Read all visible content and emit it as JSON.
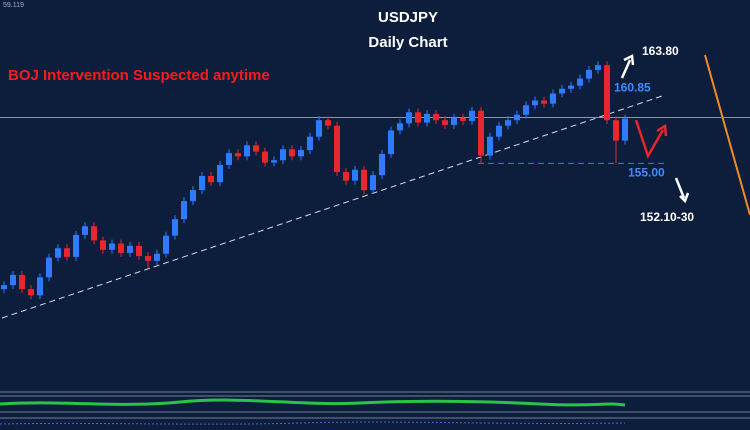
{
  "chart_data": {
    "type": "candlestick",
    "title": "USDJPY",
    "subtitle": "Daily Chart",
    "annotation": "BOJ Intervention Suspected anytime",
    "corner_label": "59.119",
    "open": [
      139.0,
      139.5,
      140.8,
      139.0,
      138.2,
      140.5,
      143.0,
      144.2,
      143.1,
      145.9,
      147.0,
      145.2,
      144.0,
      144.8,
      143.6,
      144.5,
      143.2,
      142.6,
      143.5,
      145.8,
      147.9,
      150.2,
      151.6,
      153.4,
      152.6,
      154.8,
      156.3,
      155.9,
      157.3,
      156.5,
      155.1,
      155.4,
      156.8,
      155.9,
      156.7,
      158.4,
      160.5,
      159.8,
      153.9,
      152.8,
      154.2,
      151.6,
      153.5,
      156.2,
      159.2,
      160.1,
      161.5,
      160.2,
      161.3,
      160.5,
      159.9,
      160.8,
      160.4,
      161.7,
      156.0,
      158.4,
      159.8,
      160.5,
      161.2,
      162.4,
      163.0,
      162.6,
      163.9,
      164.5,
      164.9,
      165.8,
      166.9,
      167.5,
      160.5,
      157.9
    ],
    "high": [
      140.0,
      141.3,
      141.3,
      139.5,
      141.0,
      143.5,
      144.7,
      144.7,
      146.4,
      147.5,
      147.5,
      145.7,
      145.3,
      145.3,
      145.0,
      145.0,
      143.7,
      144.0,
      146.3,
      148.4,
      150.7,
      152.1,
      153.9,
      153.9,
      155.3,
      156.8,
      156.8,
      157.8,
      157.8,
      157.0,
      155.9,
      157.3,
      157.3,
      157.2,
      158.9,
      161.0,
      161.0,
      160.3,
      154.4,
      154.7,
      154.7,
      154.0,
      156.7,
      159.7,
      160.6,
      162.0,
      162.0,
      161.8,
      161.8,
      161.0,
      161.3,
      161.3,
      162.2,
      162.2,
      158.9,
      160.3,
      161.0,
      161.7,
      162.9,
      163.5,
      163.5,
      164.4,
      165.0,
      165.4,
      166.3,
      167.4,
      168.0,
      168.0,
      161.0,
      161.2
    ],
    "low": [
      138.5,
      139.0,
      138.5,
      137.7,
      137.7,
      140.0,
      142.5,
      142.6,
      142.6,
      145.4,
      144.7,
      143.5,
      143.5,
      143.1,
      143.1,
      142.7,
      141.6,
      142.1,
      143.0,
      145.3,
      147.4,
      149.7,
      151.1,
      152.1,
      152.1,
      154.3,
      155.4,
      155.4,
      156.0,
      154.6,
      154.6,
      154.9,
      155.4,
      155.4,
      156.2,
      157.9,
      159.3,
      153.4,
      152.3,
      152.3,
      151.1,
      151.1,
      153.0,
      155.7,
      158.7,
      159.6,
      159.7,
      159.7,
      160.0,
      159.4,
      159.4,
      159.9,
      159.9,
      155.0,
      155.5,
      157.9,
      159.3,
      160.0,
      160.7,
      161.9,
      162.1,
      162.1,
      163.4,
      164.0,
      164.4,
      165.3,
      166.4,
      160.0,
      155.0,
      157.4
    ],
    "close": [
      139.5,
      140.8,
      139.0,
      138.2,
      140.5,
      143.0,
      144.2,
      143.1,
      145.9,
      147.0,
      145.2,
      144.0,
      144.8,
      143.6,
      144.5,
      143.2,
      142.6,
      143.5,
      145.8,
      147.9,
      150.2,
      151.6,
      153.4,
      152.6,
      154.8,
      156.3,
      155.9,
      157.3,
      156.5,
      155.1,
      155.4,
      156.8,
      155.9,
      156.7,
      158.4,
      160.5,
      159.8,
      153.9,
      152.8,
      154.2,
      151.6,
      153.5,
      156.2,
      159.2,
      160.1,
      161.5,
      160.2,
      161.3,
      160.5,
      159.9,
      160.8,
      160.4,
      161.7,
      156.0,
      158.4,
      159.8,
      160.5,
      161.2,
      162.4,
      163.0,
      162.6,
      163.9,
      164.5,
      164.9,
      165.8,
      166.9,
      167.5,
      160.5,
      157.9,
      160.7
    ],
    "ylim": [
      134.3,
      175.8
    ],
    "up_color": "#2f7bff",
    "down_color": "#e8262d",
    "levels": [
      {
        "value": 160.85,
        "label": "160.85"
      },
      {
        "value": 155,
        "label": "155.00"
      }
    ],
    "targets": [
      "163.80",
      "152.10-30"
    ]
  }
}
